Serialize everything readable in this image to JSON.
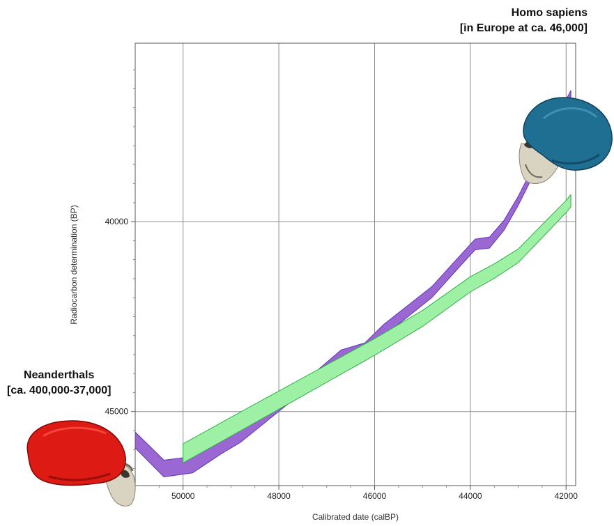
{
  "chart_data": {
    "type": "area",
    "title": "",
    "xlabel": "Calibrated date (calBP)",
    "ylabel": "Radiocarbon determination (BP)",
    "xlim": [
      51000,
      41800
    ],
    "ylim": [
      46950,
      35300
    ],
    "x_ticks": [
      50000,
      48000,
      46000,
      44000,
      42000
    ],
    "y_ticks": [
      40000,
      45000
    ],
    "grid": true,
    "series": [
      {
        "color": "#9b67d3",
        "stroke": "#5b35b8",
        "points": [
          {
            "x": 51000,
            "y": 45750,
            "w": 420
          },
          {
            "x": 50400,
            "y": 46500,
            "w": 440
          },
          {
            "x": 49800,
            "y": 46400,
            "w": 430
          },
          {
            "x": 49200,
            "y": 45900,
            "w": 420
          },
          {
            "x": 48800,
            "y": 45600,
            "w": 420
          },
          {
            "x": 48300,
            "y": 45100,
            "w": 400
          },
          {
            "x": 47800,
            "y": 44600,
            "w": 380
          },
          {
            "x": 47200,
            "y": 44100,
            "w": 360
          },
          {
            "x": 46700,
            "y": 43550,
            "w": 340
          },
          {
            "x": 46200,
            "y": 43350,
            "w": 320
          },
          {
            "x": 45800,
            "y": 42850,
            "w": 310
          },
          {
            "x": 45300,
            "y": 42350,
            "w": 300
          },
          {
            "x": 44800,
            "y": 41850,
            "w": 290
          },
          {
            "x": 44300,
            "y": 41150,
            "w": 280
          },
          {
            "x": 43900,
            "y": 40600,
            "w": 280
          },
          {
            "x": 43600,
            "y": 40550,
            "w": 290
          },
          {
            "x": 43300,
            "y": 40100,
            "w": 260
          },
          {
            "x": 43000,
            "y": 39450,
            "w": 240
          },
          {
            "x": 42700,
            "y": 38700,
            "w": 230
          },
          {
            "x": 42400,
            "y": 37950,
            "w": 220
          },
          {
            "x": 42150,
            "y": 37250,
            "w": 220
          },
          {
            "x": 41900,
            "y": 36650,
            "w": 210
          }
        ]
      },
      {
        "color": "#9ef0a4",
        "stroke": "#2fae49",
        "points": [
          {
            "x": 50000,
            "y": 46100,
            "w": 500
          },
          {
            "x": 49000,
            "y": 45400,
            "w": 500
          },
          {
            "x": 48000,
            "y": 44700,
            "w": 480
          },
          {
            "x": 47000,
            "y": 44000,
            "w": 460
          },
          {
            "x": 46000,
            "y": 43300,
            "w": 440
          },
          {
            "x": 45000,
            "y": 42550,
            "w": 420
          },
          {
            "x": 44000,
            "y": 41650,
            "w": 400
          },
          {
            "x": 43500,
            "y": 41300,
            "w": 380
          },
          {
            "x": 43000,
            "y": 40900,
            "w": 360
          },
          {
            "x": 42500,
            "y": 40250,
            "w": 340
          },
          {
            "x": 42000,
            "y": 39600,
            "w": 320
          },
          {
            "x": 41900,
            "y": 39450,
            "w": 320
          }
        ]
      }
    ],
    "annotations": [
      {
        "id": "sapiens",
        "lines": [
          "Homo sapiens",
          "[in Europe at ca. 46,000]"
        ]
      },
      {
        "id": "neanderthals",
        "lines": [
          "Neanderthals",
          "[ca. 400,000-37,000]"
        ]
      }
    ]
  },
  "skulls": {
    "sapiens_color": "#1f6f93",
    "neanderthal_color": "#dd1a14",
    "bone_color": "#d9d3c2"
  }
}
